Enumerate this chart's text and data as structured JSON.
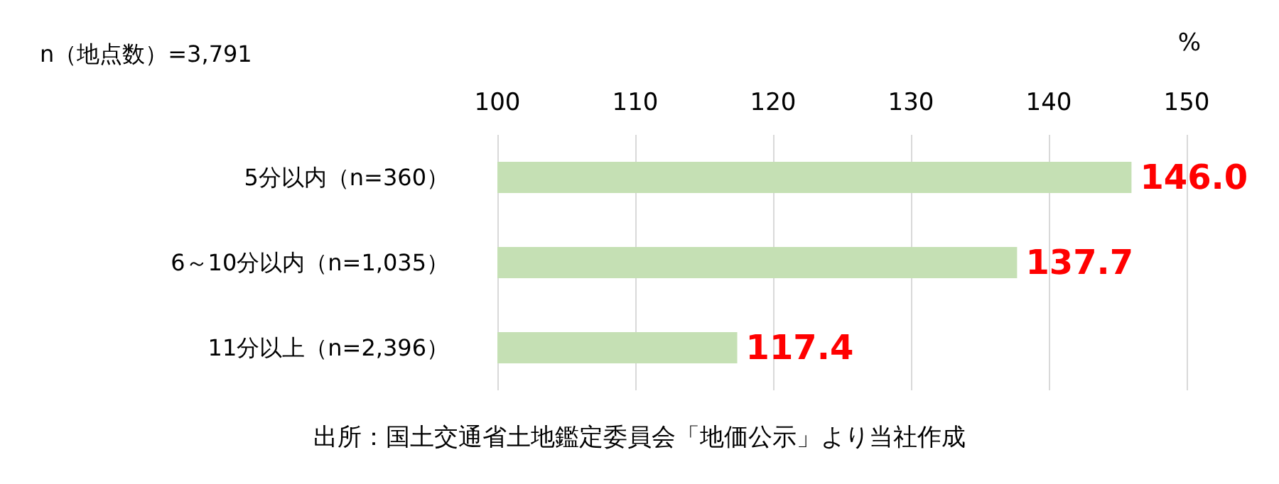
{
  "chart_data": {
    "type": "bar",
    "orientation": "horizontal",
    "categories": [
      "5分以内（n=360）",
      "6～10分以内（n=1,035）",
      "11分以上（n=2,396）"
    ],
    "values": [
      146.0,
      137.7,
      117.4
    ],
    "value_labels": [
      "146.0",
      "137.7",
      "117.4"
    ],
    "color": "#c5e0b4",
    "xlim": [
      100,
      150
    ],
    "xticks": [
      100,
      110,
      120,
      130,
      140,
      150
    ],
    "xlabel": "%",
    "grid": "x",
    "annotations": [
      "n（地点数）=3,791",
      "出所：国土交通省土地鑑定委員会「地価公示」より当社作成"
    ]
  }
}
